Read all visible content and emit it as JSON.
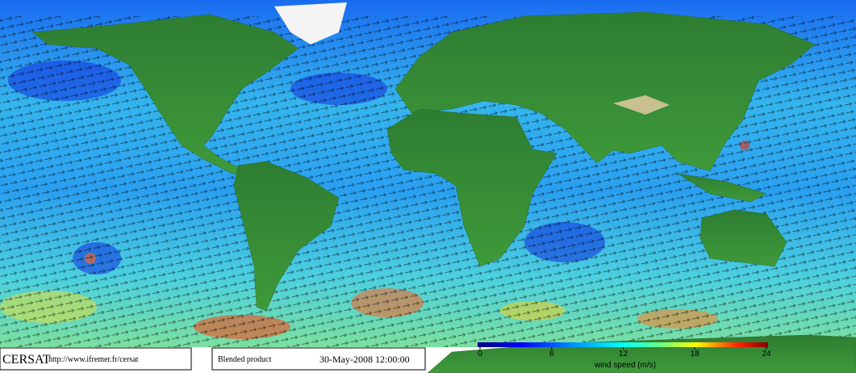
{
  "footer": {
    "logo": "CERSAT",
    "url": "http://www.ifremer.fr/cersat",
    "product": "Blended product",
    "timestamp": "30-May-2008 12:00:00"
  },
  "colorbar": {
    "label": "wind speed (m/s)",
    "lim": [
      0,
      24
    ],
    "ticks": [
      0,
      6,
      12,
      18,
      24
    ]
  }
}
